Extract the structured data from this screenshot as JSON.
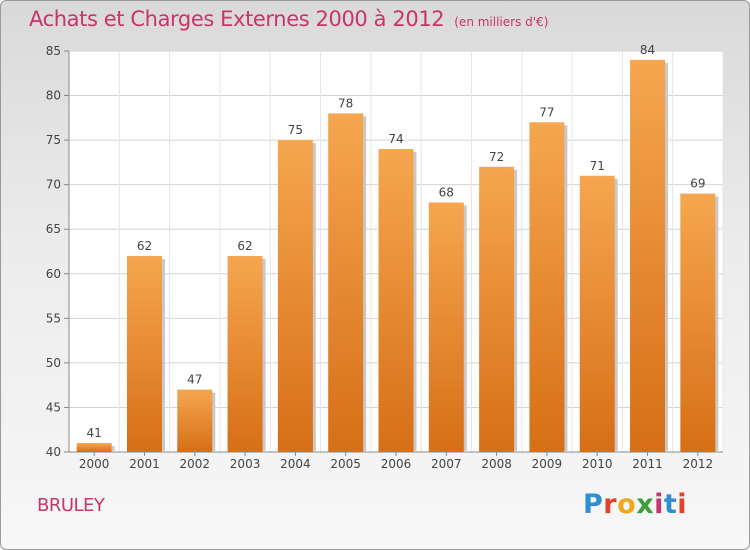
{
  "header": {
    "title": "Achats et Charges Externes 2000 à 2012",
    "subtitle": "(en milliers d'€)"
  },
  "footer": {
    "location": "BRULEY",
    "logo_text": "Proxiti",
    "logo_colors": [
      "#2f8ed0",
      "#e0422a",
      "#f0a81e",
      "#3aa13a",
      "#c8346b",
      "#2f8ed0",
      "#e0422a"
    ]
  },
  "chart_data": {
    "type": "bar",
    "title": "Achats et Charges Externes 2000 à 2012",
    "subtitle": "(en milliers d'€)",
    "xlabel": "",
    "ylabel": "",
    "categories": [
      "2000",
      "2001",
      "2002",
      "2003",
      "2004",
      "2005",
      "2006",
      "2007",
      "2008",
      "2009",
      "2010",
      "2011",
      "2012"
    ],
    "values": [
      41,
      62,
      47,
      62,
      75,
      78,
      74,
      68,
      72,
      77,
      71,
      84,
      69
    ],
    "ylim": [
      40,
      85
    ],
    "yticks": [
      40,
      45,
      50,
      55,
      60,
      65,
      70,
      75,
      80,
      85
    ],
    "grid": true,
    "bar_color": "#f39a3c",
    "bar_dark_color": "#d9741c"
  }
}
